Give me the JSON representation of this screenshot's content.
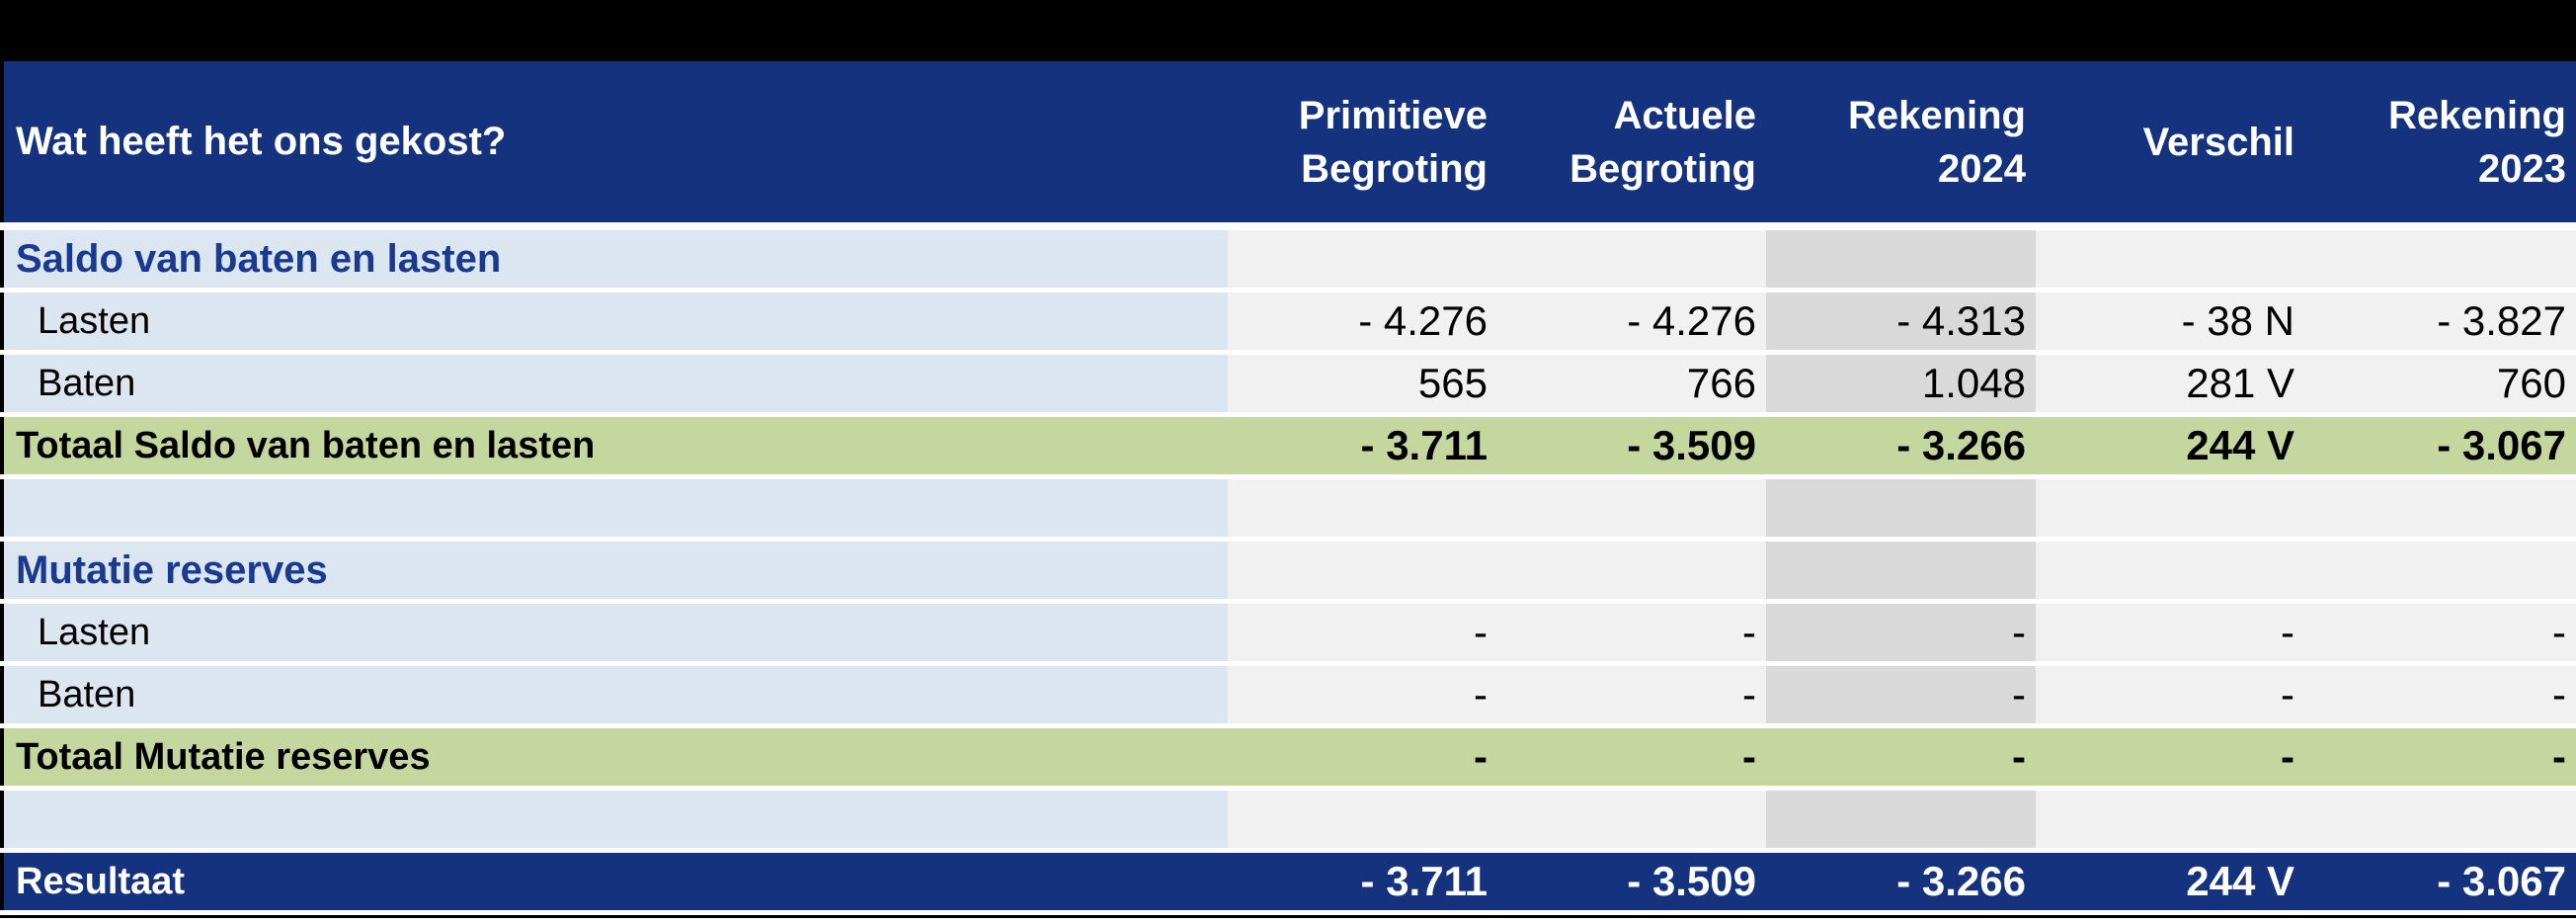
{
  "table": {
    "title": "Wat heeft het ons gekost?",
    "columns": [
      {
        "lines": [
          "Primitieve",
          "Begroting"
        ]
      },
      {
        "lines": [
          "Actuele",
          "Begroting"
        ]
      },
      {
        "lines": [
          "Rekening",
          "2024"
        ]
      },
      {
        "lines": [
          "Verschil"
        ]
      },
      {
        "lines": [
          "Rekening",
          "2023"
        ]
      }
    ],
    "rows": [
      {
        "type": "section",
        "label": "Saldo van baten en lasten",
        "values": [
          "",
          "",
          "",
          "",
          ""
        ]
      },
      {
        "type": "item",
        "label": "Lasten",
        "values": [
          "- 4.276",
          "- 4.276",
          "- 4.313",
          "- 38 N",
          "- 3.827"
        ]
      },
      {
        "type": "item",
        "label": "Baten",
        "values": [
          "565",
          "766",
          "1.048",
          "281 V",
          "760"
        ]
      },
      {
        "type": "total",
        "label": "Totaal Saldo van baten en lasten",
        "values": [
          "- 3.711",
          "- 3.509",
          "- 3.266",
          "244 V",
          "- 3.067"
        ]
      },
      {
        "type": "spacer",
        "label": "",
        "values": [
          "",
          "",
          "",
          "",
          ""
        ]
      },
      {
        "type": "section",
        "label": "Mutatie reserves",
        "values": [
          "",
          "",
          "",
          "",
          ""
        ]
      },
      {
        "type": "item",
        "label": "Lasten",
        "values": [
          "-",
          "-",
          "-",
          "-",
          "-"
        ]
      },
      {
        "type": "item",
        "label": "Baten",
        "values": [
          "-",
          "-",
          "-",
          "-",
          "-"
        ]
      },
      {
        "type": "total",
        "label": "Totaal Mutatie reserves",
        "values": [
          "-",
          "-",
          "-",
          "-",
          "-"
        ]
      },
      {
        "type": "spacer",
        "label": "",
        "values": [
          "",
          "",
          "",
          "",
          ""
        ]
      },
      {
        "type": "result",
        "label": "Resultaat",
        "values": [
          "- 3.711",
          "- 3.509",
          "- 3.266",
          "244 V",
          "- 3.067"
        ]
      }
    ],
    "colors": {
      "header_bg": "#14327D",
      "section_text": "#1A3A8F",
      "label_column_bg": "#DCE6F1",
      "numeric_column_bg": "#F1F1F2",
      "rekening2024_column_bg": "#D9D9D9",
      "total_row_bg": "#C5D79E",
      "result_row_bg": "#14327D",
      "border": "#000000"
    }
  }
}
